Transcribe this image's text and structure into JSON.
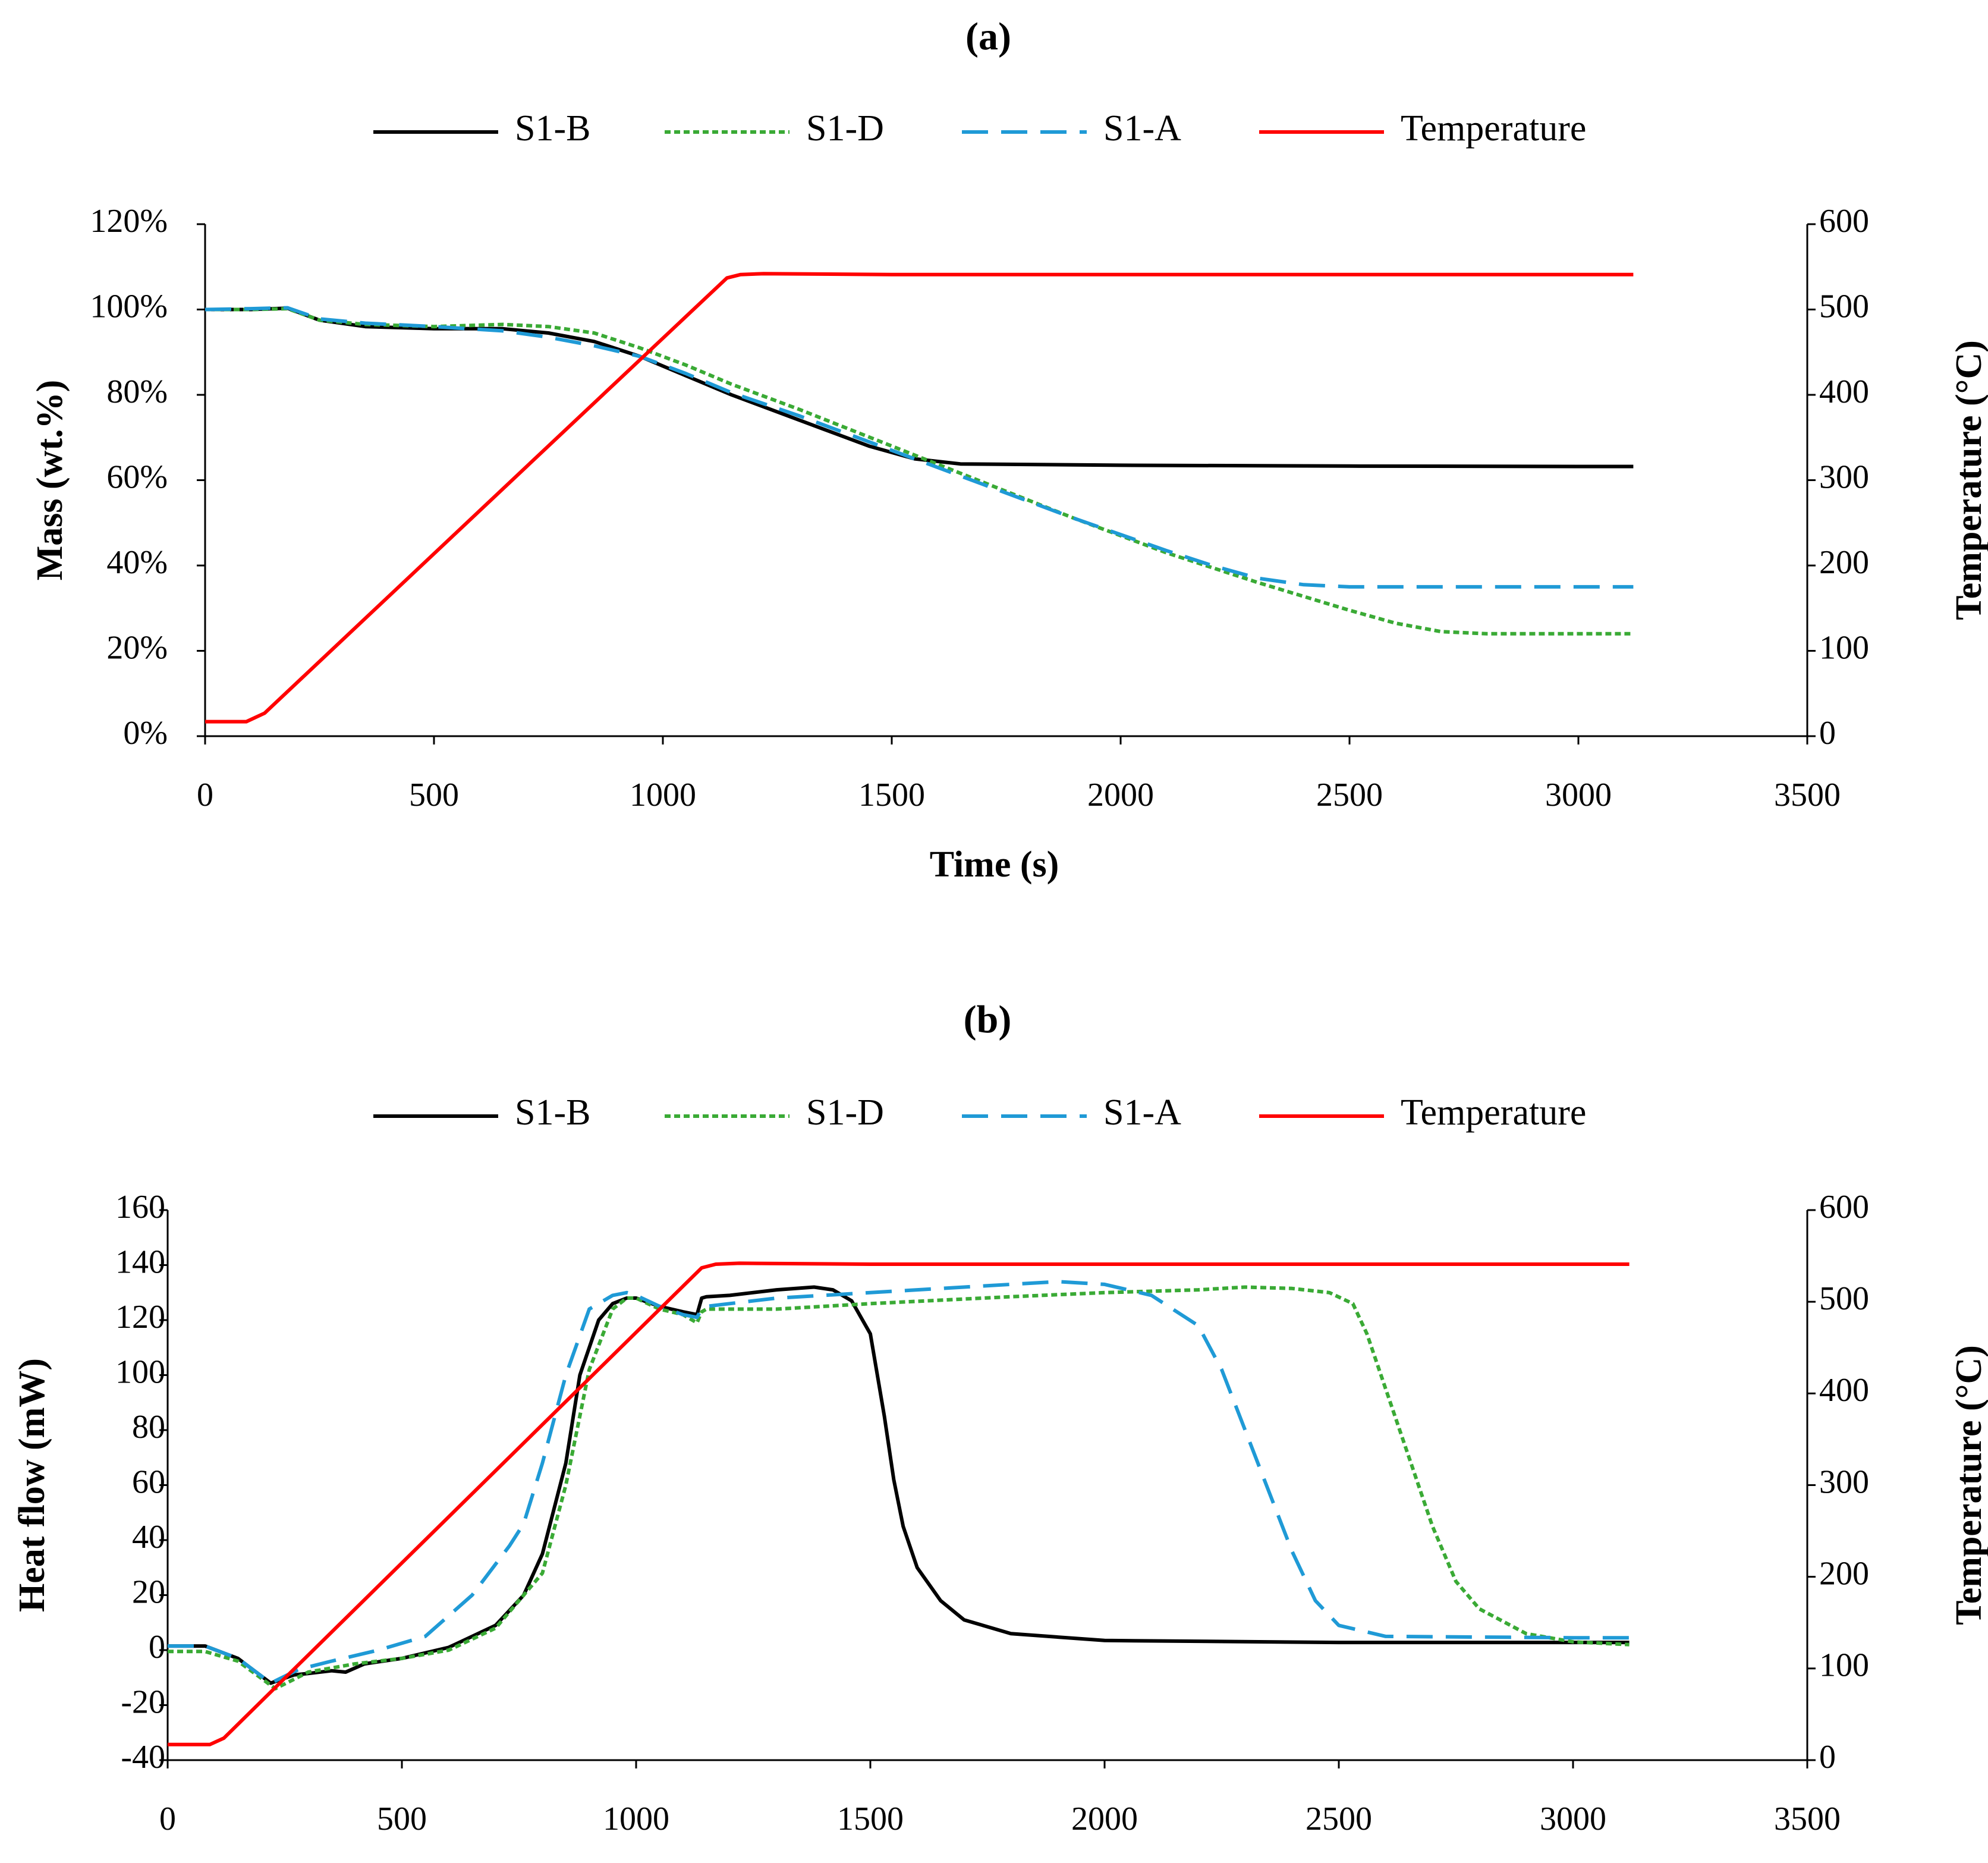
{
  "chart_data": [
    {
      "type": "line",
      "title": "(a)",
      "xlabel": "Time (s)",
      "ylabel": "Mass (wt.%)",
      "y2label": "Temperature (°C)",
      "xlim": [
        0,
        3500
      ],
      "ylim": [
        0,
        120
      ],
      "y2lim": [
        0,
        600
      ],
      "xticks": [
        "0",
        "500",
        "1000",
        "1500",
        "2000",
        "2500",
        "3000",
        "3500"
      ],
      "yticks": [
        "0%",
        "20%",
        "40%",
        "60%",
        "80%",
        "100%",
        "120%"
      ],
      "y2ticks": [
        "0",
        "100",
        "200",
        "300",
        "400",
        "500",
        "600"
      ],
      "legend_position": "top",
      "series": [
        {
          "name": "S1-B",
          "color": "#000000",
          "style": "solid",
          "axis": "left",
          "x": [
            0,
            100,
            180,
            250,
            350,
            500,
            650,
            750,
            850,
            950,
            1050,
            1150,
            1250,
            1350,
            1450,
            1550,
            1650,
            2000,
            2500,
            3000,
            3120
          ],
          "y": [
            100,
            100,
            100.3,
            97.5,
            96,
            95.5,
            95.5,
            94.5,
            92.5,
            89,
            84.5,
            80,
            76,
            72,
            68,
            65,
            63.8,
            63.5,
            63.3,
            63.2,
            63.2
          ]
        },
        {
          "name": "S1-D",
          "color": "#3aaa35",
          "style": "dotted",
          "axis": "left",
          "x": [
            0,
            100,
            180,
            250,
            350,
            500,
            650,
            750,
            850,
            950,
            1050,
            1150,
            1300,
            1500,
            1700,
            1900,
            2100,
            2300,
            2500,
            2600,
            2700,
            2800,
            3000,
            3120
          ],
          "y": [
            100,
            100,
            100.2,
            97.5,
            96.5,
            96,
            96.5,
            96,
            94.5,
            91,
            87,
            82.5,
            76.5,
            68,
            59.5,
            51,
            43,
            36,
            29.5,
            26.5,
            24.5,
            24,
            24,
            24
          ]
        },
        {
          "name": "S1-A",
          "color": "#1f9ad6",
          "style": "dashed",
          "axis": "left",
          "x": [
            0,
            100,
            180,
            250,
            350,
            500,
            650,
            750,
            850,
            950,
            1050,
            1150,
            1300,
            1500,
            1700,
            1900,
            2100,
            2200,
            2300,
            2400,
            2500,
            2700,
            3000,
            3120
          ],
          "y": [
            100,
            100.2,
            100.4,
            97.8,
            96.8,
            96,
            95,
            93.5,
            91.5,
            89,
            85,
            80.5,
            75,
            67,
            59,
            51,
            43.5,
            40,
            37,
            35.5,
            35,
            35,
            35,
            35
          ]
        },
        {
          "name": "Temperature",
          "color": "#ff0000",
          "style": "solid",
          "axis": "right",
          "x": [
            0,
            90,
            130,
            1140,
            1170,
            1220,
            1500,
            2000,
            3120
          ],
          "y": [
            17,
            17,
            27,
            537,
            541,
            542,
            541,
            541,
            541
          ]
        }
      ]
    },
    {
      "type": "line",
      "title": "(b)",
      "xlabel": "Time (s)",
      "ylabel": "Heat flow (mW)",
      "y2label": "Temperature (°C)",
      "xlim": [
        0,
        3500
      ],
      "ylim": [
        -40,
        160
      ],
      "y2lim": [
        0,
        600
      ],
      "xticks": [
        "0",
        "500",
        "1000",
        "1500",
        "2000",
        "2500",
        "3000",
        "3500"
      ],
      "yticks": [
        "-40",
        "-20",
        "0",
        "20",
        "40",
        "60",
        "80",
        "100",
        "120",
        "140",
        "160"
      ],
      "y2ticks": [
        "0",
        "100",
        "200",
        "300",
        "400",
        "500",
        "600"
      ],
      "legend_position": "top",
      "series": [
        {
          "name": "S1-B",
          "color": "#000000",
          "style": "solid",
          "axis": "left",
          "x": [
            0,
            80,
            150,
            220,
            270,
            300,
            350,
            380,
            420,
            500,
            600,
            700,
            760,
            800,
            850,
            880,
            920,
            950,
            980,
            1000,
            1050,
            1100,
            1130,
            1140,
            1150,
            1200,
            1300,
            1380,
            1420,
            1460,
            1500,
            1530,
            1550,
            1570,
            1600,
            1650,
            1700,
            1800,
            2000,
            2500,
            3000,
            3120
          ],
          "y": [
            1.5,
            1.5,
            -3,
            -12,
            -9,
            -8.5,
            -7.5,
            -8,
            -5,
            -3,
            1,
            9,
            20,
            35,
            68,
            100,
            120,
            126,
            128,
            128,
            125,
            123,
            122,
            128,
            128.5,
            129,
            131,
            132,
            131,
            127,
            115,
            85,
            62,
            45,
            30,
            18,
            11,
            6,
            3.5,
            2.8,
            2.8,
            2.8
          ]
        },
        {
          "name": "S1-D",
          "color": "#3aaa35",
          "style": "dotted",
          "axis": "left",
          "x": [
            0,
            80,
            150,
            230,
            300,
            400,
            500,
            600,
            700,
            800,
            850,
            900,
            950,
            980,
            1000,
            1050,
            1100,
            1130,
            1140,
            1150,
            1300,
            1500,
            1800,
            2000,
            2200,
            2300,
            2400,
            2480,
            2530,
            2560,
            2600,
            2650,
            2700,
            2750,
            2800,
            2900,
            3000,
            3120
          ],
          "y": [
            -0.5,
            -0.5,
            -4,
            -14,
            -8,
            -5,
            -3,
            0,
            8,
            28,
            60,
            102,
            124,
            128,
            128,
            124,
            122,
            119,
            123,
            124,
            124,
            126,
            128.5,
            130,
            131,
            132,
            131.5,
            130,
            126,
            115,
            95,
            70,
            45,
            25,
            15,
            6,
            3,
            2
          ]
        },
        {
          "name": "S1-A",
          "color": "#1f9ad6",
          "style": "dashed",
          "axis": "left",
          "x": [
            0,
            80,
            150,
            220,
            280,
            350,
            450,
            550,
            650,
            730,
            760,
            800,
            850,
            900,
            950,
            980,
            1000,
            1050,
            1100,
            1130,
            1140,
            1150,
            1300,
            1500,
            1700,
            1900,
            2000,
            2100,
            2200,
            2250,
            2300,
            2350,
            2400,
            2450,
            2500,
            2600,
            3000,
            3120
          ],
          "y": [
            1.5,
            1.5,
            -3,
            -12,
            -7,
            -4,
            0,
            5,
            20,
            38,
            46,
            68,
            100,
            124,
            129,
            130,
            129,
            125,
            122,
            121,
            124,
            125,
            128,
            130,
            132,
            134,
            133,
            129,
            118,
            102,
            80,
            58,
            36,
            18,
            9,
            5,
            4.5,
            4.5
          ]
        },
        {
          "name": "Temperature",
          "color": "#ff0000",
          "style": "solid",
          "axis": "right",
          "x": [
            0,
            90,
            120,
            1140,
            1170,
            1220,
            1500,
            2000,
            3120
          ],
          "y": [
            17,
            17,
            24,
            537,
            541,
            542,
            541,
            541,
            541
          ]
        }
      ]
    }
  ]
}
